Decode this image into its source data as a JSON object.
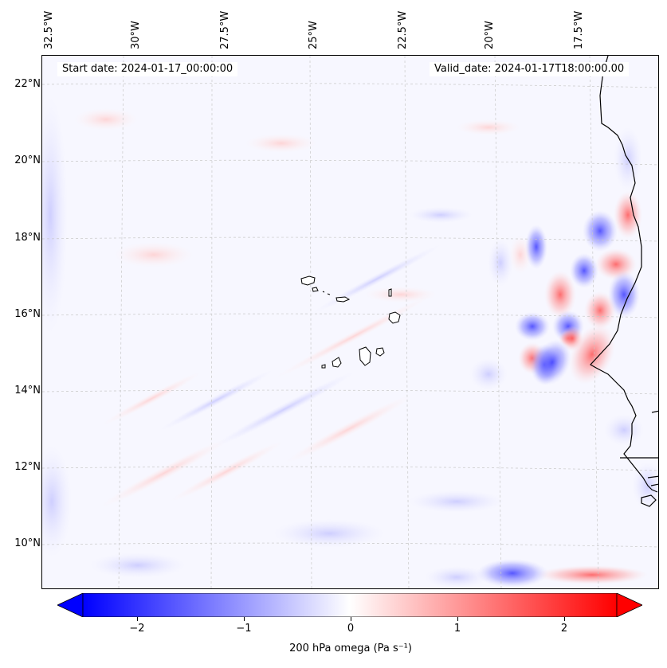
{
  "header": {
    "start_date": "Start date: 2024-01-17_00:00:00",
    "valid_date": "Valid_date: 2024-01-17T18:00:00.00"
  },
  "axes": {
    "longitude_labels": [
      "32.5°W",
      "30°W",
      "27.5°W",
      "25°W",
      "22.5°W",
      "20°W",
      "17.5°W"
    ],
    "latitude_labels": [
      "22°N",
      "20°N",
      "18°N",
      "16°N",
      "14°N",
      "12°N",
      "10°N"
    ]
  },
  "colorbar": {
    "label": "200 hPa omega (Pa s⁻¹)",
    "ticks": [
      "−2",
      "−1",
      "0",
      "1",
      "2"
    ],
    "range": [
      -2.5,
      2.5
    ],
    "colormap": "bwr",
    "extend": "both",
    "colors": {
      "negative": "#0000ff",
      "zero": "#ffffff",
      "positive": "#ff0000"
    }
  },
  "map": {
    "region": "Eastern tropical Atlantic, Cape Verde Islands and West African coast",
    "field": "200 hPa omega",
    "gridlines": true,
    "coastline_color": "#000000"
  }
}
